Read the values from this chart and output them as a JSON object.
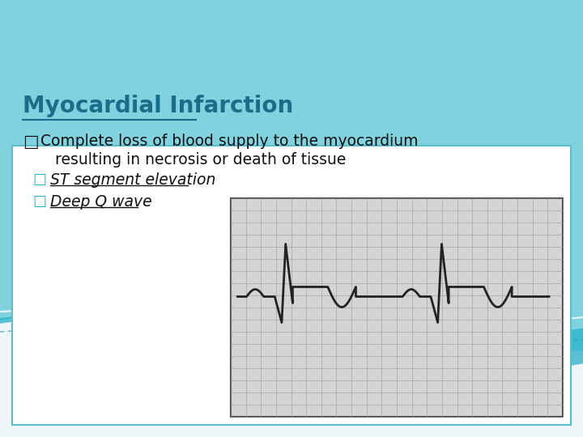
{
  "title": "Myocardial Infarction",
  "title_color": "#1a6e8a",
  "title_fontsize": 20,
  "bg_color": "#eef6f9",
  "box_border": "#5bbccc",
  "text_color": "#111111",
  "sub_text_color": "#29b0c8",
  "wave_color": "#222222",
  "grid_color": "#aaaaaa",
  "grid_bg": "#cccccc",
  "teal_dark": "#29b0c8",
  "teal_light": "#6dd6e4",
  "white_wave": "#ffffff",
  "bullet_main": "Complete loss of blood supply to the myocardium",
  "bullet_main2": "   resulting in necrosis or death of tissue",
  "sub_bullet1": "ST segment elevation",
  "sub_bullet2": "Deep Q wave"
}
